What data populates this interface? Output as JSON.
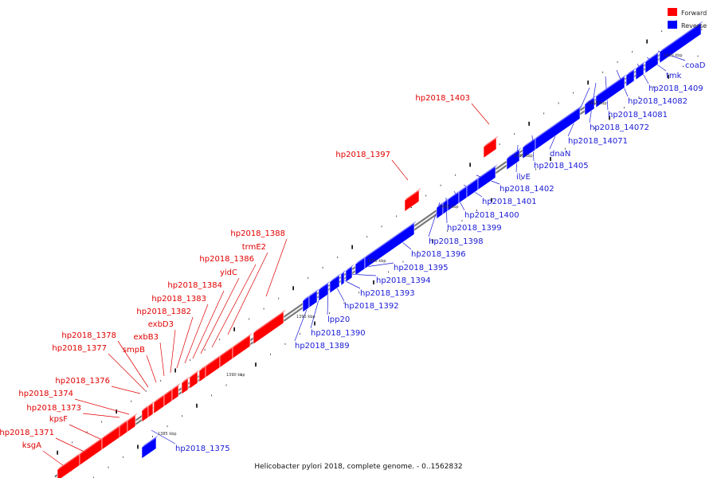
{
  "caption": "Helicobacter pylori 2018, complete genome. - 0..1562832",
  "legend": {
    "forward": "Forward",
    "reverse": "Reverse",
    "forward_color": "#ff0000",
    "reverse_color": "#0000ff"
  },
  "ticks": [
    "1385 kbp",
    "1390 kbp",
    "1395 kbp",
    "1400 kbp",
    "1405 kbp",
    "1410 kbp",
    "1415 kbp",
    "1420 kbp"
  ],
  "forward_genes": [
    {
      "name": "ksgA"
    },
    {
      "name": "hp2018_1371"
    },
    {
      "name": "kpsF"
    },
    {
      "name": "hp2018_1373"
    },
    {
      "name": "hp2018_1374"
    },
    {
      "name": "hp2018_1376"
    },
    {
      "name": "hp2018_1377"
    },
    {
      "name": "hp2018_1378"
    },
    {
      "name": "smpB"
    },
    {
      "name": "exbB3"
    },
    {
      "name": "exbD3"
    },
    {
      "name": "hp2018_1382"
    },
    {
      "name": "hp2018_1383"
    },
    {
      "name": "hp2018_1384"
    },
    {
      "name": "yidC"
    },
    {
      "name": "hp2018_1386"
    },
    {
      "name": "trmE2"
    },
    {
      "name": "hp2018_1388"
    },
    {
      "name": "hp2018_1397"
    },
    {
      "name": "hp2018_1403"
    }
  ],
  "reverse_genes": [
    {
      "name": "hp2018_1375"
    },
    {
      "name": "hp2018_1389"
    },
    {
      "name": "hp2018_1390"
    },
    {
      "name": "lpp20"
    },
    {
      "name": "hp2018_1392"
    },
    {
      "name": "hp2018_1393"
    },
    {
      "name": "hp2018_1394"
    },
    {
      "name": "hp2018_1395"
    },
    {
      "name": "hp2018_1396"
    },
    {
      "name": "hp2018_1398"
    },
    {
      "name": "hp2018_1399"
    },
    {
      "name": "hp2018_1400"
    },
    {
      "name": "hp2018_1401"
    },
    {
      "name": "hp2018_1402"
    },
    {
      "name": "ilvE"
    },
    {
      "name": "hp2018_1405"
    },
    {
      "name": "dnaN"
    },
    {
      "name": "hp2018_14071"
    },
    {
      "name": "hp2018_14072"
    },
    {
      "name": "hp2018_14081"
    },
    {
      "name": "hp2018_14082"
    },
    {
      "name": "hp2018_1409"
    },
    {
      "name": "tmk"
    },
    {
      "name": "coaD"
    }
  ]
}
